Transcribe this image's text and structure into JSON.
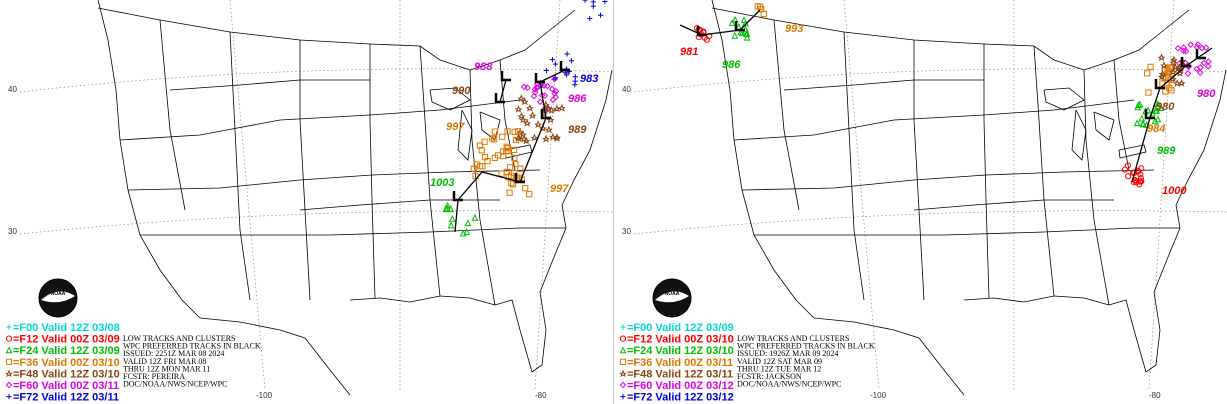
{
  "panels": [
    {
      "logo_text": "NOAA",
      "legend": [
        {
          "label": "=F00 Valid 12Z 03/08",
          "color": "#00d8d8"
        },
        {
          "label": "=F12 Valid 00Z 03/09",
          "color": "#ff0000"
        },
        {
          "label": "=F24 Valid 12Z 03/09",
          "color": "#00c000"
        },
        {
          "label": "=F36 Valid 00Z 03/10",
          "color": "#e07800"
        },
        {
          "label": "=F48 Valid 12Z 03/10",
          "color": "#8b4513"
        },
        {
          "label": "=F60 Valid 00Z 03/11",
          "color": "#e000e0"
        },
        {
          "label": "=F72 Valid 12Z 03/11",
          "color": "#0000e0"
        }
      ],
      "info": [
        "LOW TRACKS AND CLUSTERS",
        "WPC PREFERRED TRACKS IN BLACK",
        "ISSUED: 2251Z MAR 08 2024",
        "VALID 12Z FRI MAR 08",
        "THRU 12Z MON MAR 11",
        "FCSTR: PEREIRA",
        "DOC/NOAA/NWS/NCEP/WPC"
      ],
      "pressures": [
        {
          "label": "988",
          "color": "#e000e0"
        },
        {
          "label": "983",
          "color": "#0000e0"
        },
        {
          "label": "990",
          "color": "#8b4513"
        },
        {
          "label": "986",
          "color": "#e000e0"
        },
        {
          "label": "997",
          "color": "#e07800"
        },
        {
          "label": "989",
          "color": "#8b4513"
        },
        {
          "label": "1003",
          "color": "#00c000"
        },
        {
          "label": "997",
          "color": "#e07800"
        }
      ],
      "lat_labels": [
        "40",
        "30"
      ],
      "lon_labels": [
        "-100",
        "-80"
      ]
    },
    {
      "logo_text": "NOAA",
      "legend": [
        {
          "label": "=F00 Valid 12Z 03/09",
          "color": "#00d8d8"
        },
        {
          "label": "=F12 Valid 00Z 03/10",
          "color": "#ff0000"
        },
        {
          "label": "=F24 Valid 12Z 03/10",
          "color": "#00c000"
        },
        {
          "label": "=F36 Valid 00Z 03/11",
          "color": "#e07800"
        },
        {
          "label": "=F48 Valid 12Z 03/11",
          "color": "#8b4513"
        },
        {
          "label": "=F60 Valid 00Z 03/12",
          "color": "#e000e0"
        },
        {
          "label": "=F72 Valid 12Z 03/12",
          "color": "#0000e0"
        }
      ],
      "info": [
        "LOW TRACKS AND CLUSTERS",
        "WPC PREFERRED TRACKS IN BLACK",
        "ISSUED: 1926Z MAR 09 2024",
        "VALID 12Z SAT MAR 09",
        "THRU 12Z TUE MAR 12",
        "FCSTR: JACKSON",
        "DOC/NOAA/NWS/NCEP/WPC"
      ],
      "pressures": [
        {
          "label": "981",
          "color": "#ff0000"
        },
        {
          "label": "986",
          "color": "#00c000"
        },
        {
          "label": "993",
          "color": "#e07800"
        },
        {
          "label": "980",
          "color": "#e000e0"
        },
        {
          "label": "984",
          "color": "#e07800"
        },
        {
          "label": "980",
          "color": "#8b4513"
        },
        {
          "label": "989",
          "color": "#00c000"
        },
        {
          "label": "1000",
          "color": "#ff0000"
        }
      ],
      "lat_labels": [
        "40",
        "30"
      ],
      "lon_labels": [
        "-100",
        "-80"
      ]
    }
  ]
}
